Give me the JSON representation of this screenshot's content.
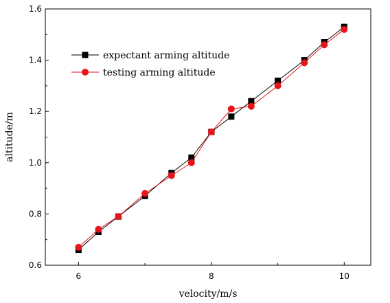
{
  "chart_data": {
    "type": "line",
    "title": "",
    "xlabel": "velocity/m/s",
    "ylabel": "altitude/m",
    "xlim": [
      5.5,
      10.4
    ],
    "ylim": [
      0.6,
      1.6
    ],
    "xticks": [
      6,
      8,
      10
    ],
    "yticks": [
      0.6,
      0.8,
      1.0,
      1.2,
      1.4,
      1.6
    ],
    "xtick_labels": [
      "6",
      "8",
      "10"
    ],
    "ytick_labels": [
      "0.6",
      "0.8",
      "1.0",
      "1.2",
      "1.4",
      "1.6"
    ],
    "grid": false,
    "legend_position": "upper-left",
    "series": [
      {
        "name": "expectant arming altitude",
        "marker": "square",
        "color": "#000000",
        "x": [
          6,
          6.3,
          6.6,
          7,
          7.4,
          7.7,
          8,
          8.3,
          8.6,
          9,
          9.4,
          9.7,
          10
        ],
        "y": [
          0.66,
          0.73,
          0.79,
          0.87,
          0.96,
          1.02,
          1.12,
          1.18,
          1.24,
          1.32,
          1.4,
          1.47,
          1.53
        ]
      },
      {
        "name": "testing arming altitude",
        "marker": "circle",
        "color": "#e8141c",
        "x": [
          6,
          6.3,
          6.6,
          7,
          7.4,
          7.7,
          8,
          8.3,
          8.6,
          9,
          9.4,
          9.7,
          10
        ],
        "y": [
          0.67,
          0.74,
          0.79,
          0.88,
          0.95,
          1.0,
          1.12,
          1.21,
          1.22,
          1.3,
          1.39,
          1.46,
          1.52
        ]
      }
    ]
  }
}
